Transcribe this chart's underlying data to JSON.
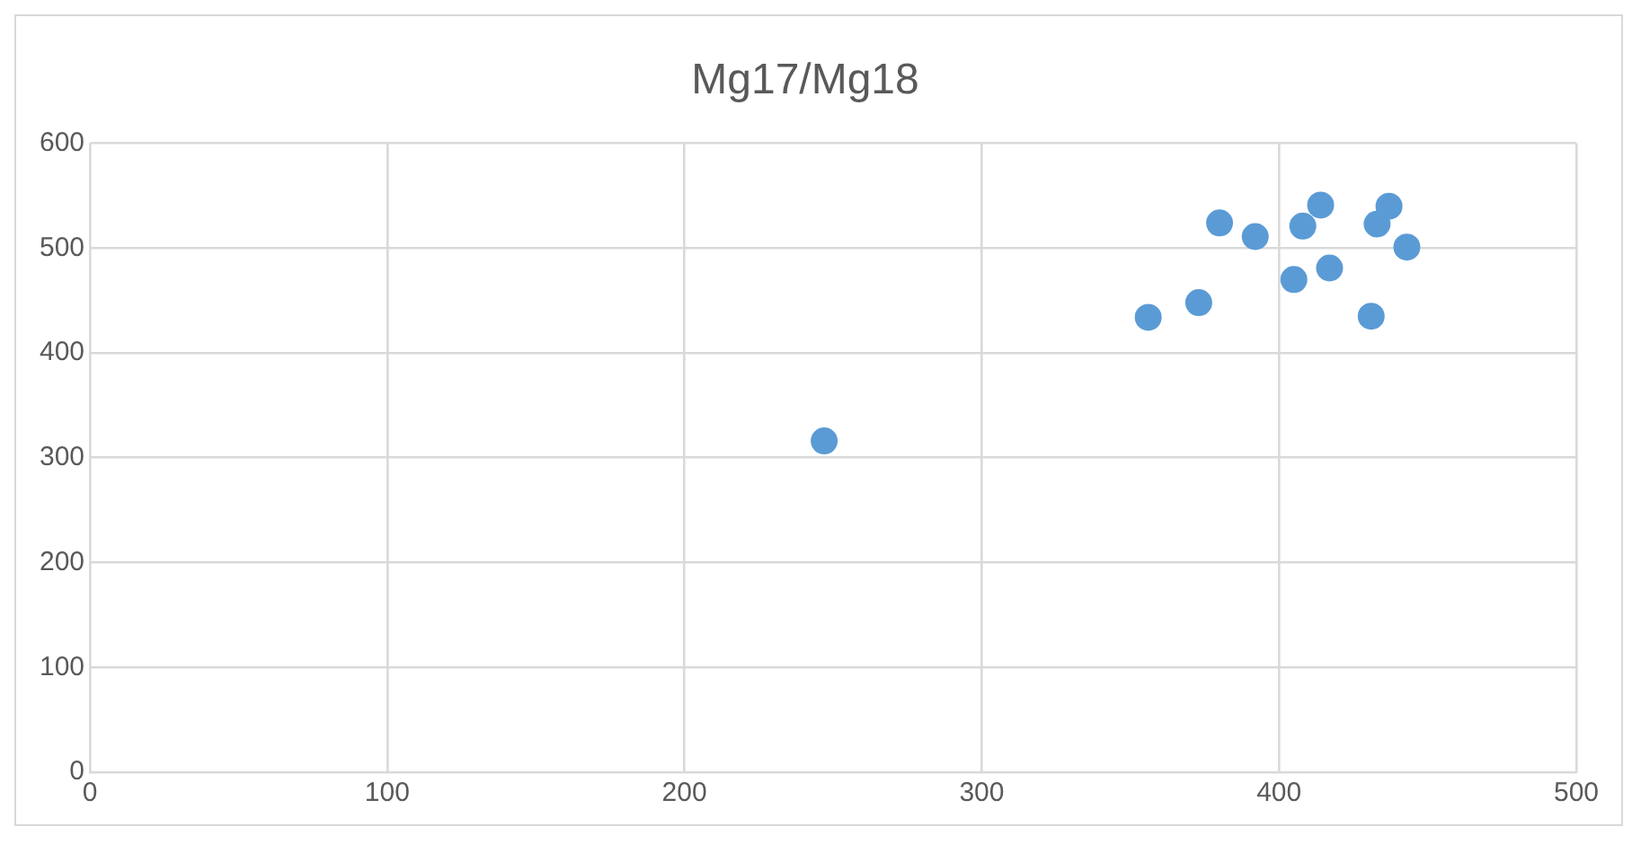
{
  "chart_data": {
    "type": "scatter",
    "title": "Mg17/Mg18",
    "x": [
      247,
      356,
      373,
      380,
      392,
      405,
      408,
      414,
      417,
      431,
      433,
      437,
      443
    ],
    "values": [
      316,
      434,
      448,
      524,
      511,
      470,
      521,
      541,
      481,
      435,
      523,
      540,
      501
    ],
    "color": "#5b9bd5",
    "marker": "circle",
    "xlim": [
      0,
      500
    ],
    "xticks": [
      0,
      100,
      200,
      300,
      400,
      500
    ],
    "ylim": [
      0,
      600
    ],
    "yticks": [
      0,
      100,
      200,
      300,
      400,
      500,
      600
    ],
    "grid": true,
    "legend": false
  }
}
